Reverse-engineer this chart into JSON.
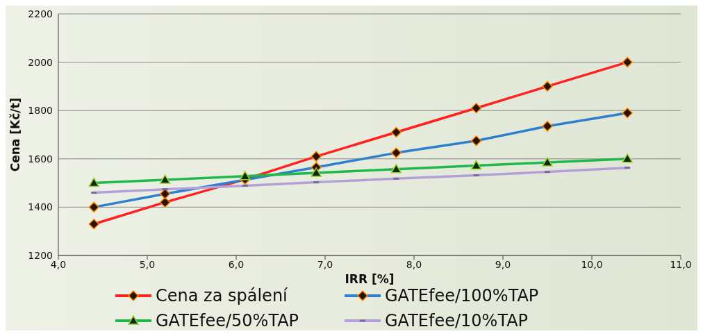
{
  "chart_data": {
    "type": "line",
    "xlabel": "IRR [%]",
    "ylabel": "Cena [Kč/t]",
    "x": [
      4.4,
      5.2,
      6.1,
      6.9,
      7.8,
      8.7,
      9.5,
      10.4
    ],
    "series": [
      {
        "name": "Cena za spálení",
        "color": "#ff2020",
        "marker": "diamond",
        "values": [
          1330,
          1420,
          1515,
          1610,
          1710,
          1810,
          1900,
          2000
        ]
      },
      {
        "name": "GATEfee/100%TAP",
        "color": "#2e7fd0",
        "marker": "diamond",
        "values": [
          1400,
          1455,
          null,
          1565,
          1625,
          1675,
          1735,
          1790
        ]
      },
      {
        "name": "GATEfee/50%TAP",
        "color": "#1fb84a",
        "marker": "triangle",
        "values": [
          1500,
          1513,
          1528,
          1542,
          1557,
          1572,
          1585,
          1600
        ]
      },
      {
        "name": "GATEfee/10%TAP",
        "color": "#b4a0d8",
        "marker": "square",
        "values": [
          1460,
          1474,
          1489,
          1503,
          1518,
          1532,
          1546,
          1563
        ]
      }
    ],
    "xlim": [
      4,
      11
    ],
    "xticks": [
      {
        "value": 4,
        "label": "4,0"
      },
      {
        "value": 5,
        "label": "5,0"
      },
      {
        "value": 6,
        "label": "6,0"
      },
      {
        "value": 7,
        "label": "7,0"
      },
      {
        "value": 8,
        "label": "8,0"
      },
      {
        "value": 9,
        "label": "9,0"
      },
      {
        "value": 10,
        "label": "10,0"
      },
      {
        "value": 11,
        "label": "11,0"
      }
    ],
    "ylim": [
      1200,
      2200
    ],
    "yticks": [
      1200,
      1400,
      1600,
      1800,
      2000,
      2200
    ],
    "grid": "y",
    "legend": "bottom",
    "line_style": "solid"
  }
}
